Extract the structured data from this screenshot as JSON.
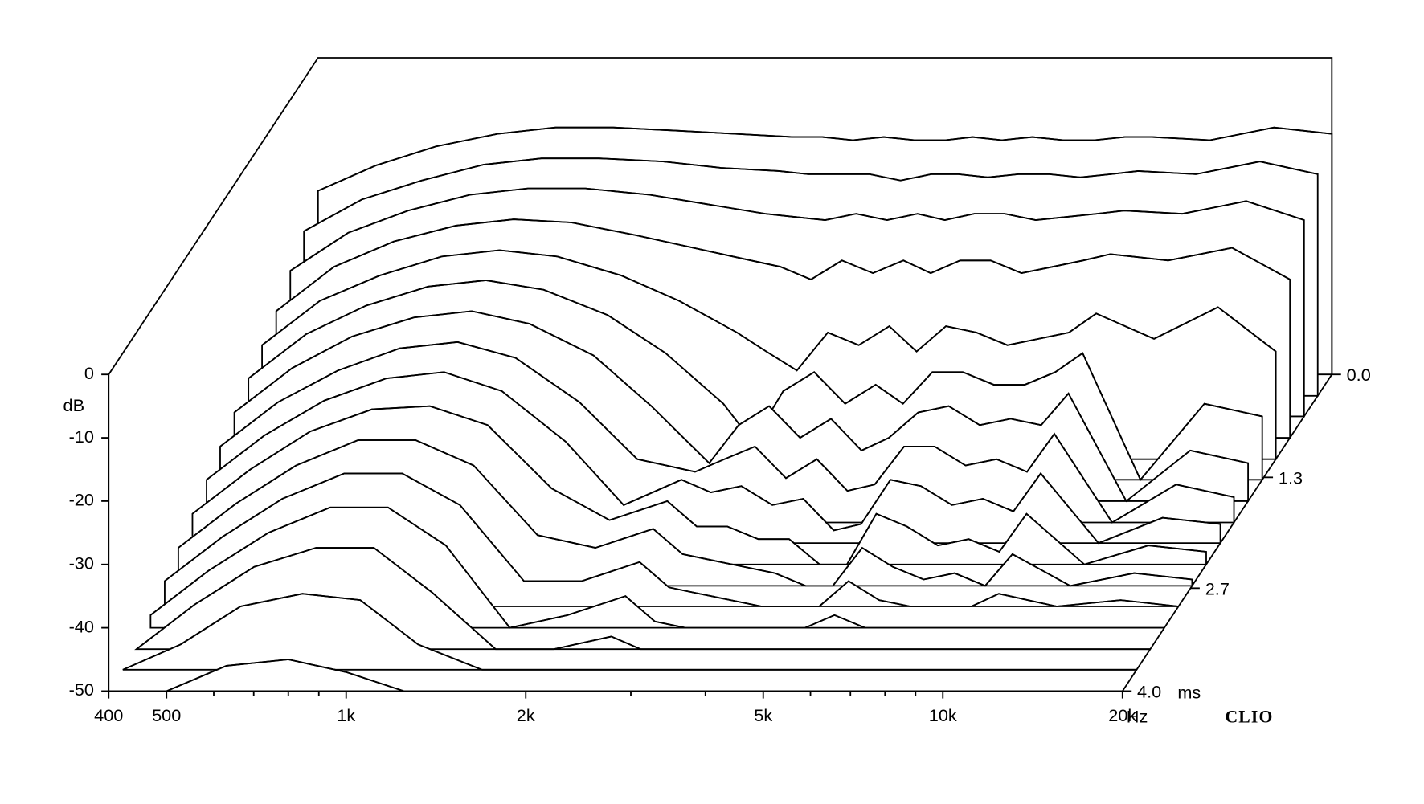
{
  "chart_data": {
    "type": "waterfall",
    "x": [
      400,
      500,
      630,
      800,
      1000,
      1250,
      1600,
      2000,
      2500,
      2800,
      3150,
      3550,
      4000,
      4500,
      5000,
      5600,
      6300,
      7100,
      8000,
      9000,
      10000,
      12500,
      16000,
      20000
    ],
    "z": [
      0,
      0.27,
      0.53,
      0.8,
      1.07,
      1.33,
      1.6,
      1.87,
      2.13,
      2.4,
      2.67,
      2.93,
      3.2,
      3.47,
      3.73,
      4.0
    ],
    "series": [
      {
        "values": [
          -21,
          -17,
          -14,
          -12,
          -11,
          -11,
          -11.5,
          -12,
          -12.5,
          -12.5,
          -13,
          -12.5,
          -13,
          -13,
          -12.5,
          -13,
          -12.5,
          -13,
          -13,
          -12.5,
          -12.5,
          -13,
          -11,
          -12
        ]
      },
      {
        "values": [
          -24,
          -19,
          -16,
          -13.5,
          -12.5,
          -12.5,
          -13,
          -14,
          -14.5,
          -15,
          -15,
          -15,
          -16,
          -15,
          -15,
          -15.5,
          -15,
          -15,
          -15.5,
          -15,
          -14.5,
          -15,
          -13,
          -15
        ]
      },
      {
        "values": [
          -27,
          -21,
          -17.5,
          -15,
          -14,
          -14,
          -15,
          -16.5,
          -18,
          -18.5,
          -19,
          -18,
          -19,
          -18,
          -19,
          -18,
          -18,
          -19,
          -18.5,
          -18,
          -17.5,
          -18,
          -16,
          -19
        ]
      },
      {
        "values": [
          -30,
          -23,
          -19,
          -16.5,
          -15.5,
          -16,
          -18,
          -20,
          -22,
          -23,
          -25,
          -22,
          -24,
          -22,
          -24,
          -22,
          -22,
          -24,
          -23,
          -22,
          -21,
          -22,
          -20,
          -25
        ]
      },
      {
        "values": [
          -32,
          -25,
          -21,
          -18,
          -17,
          -18,
          -21,
          -25,
          -30,
          -33,
          -36,
          -30,
          -32,
          -29,
          -33,
          -29,
          -30,
          -32,
          -31,
          -30,
          -27,
          -31,
          -26,
          -33
        ]
      },
      {
        "values": [
          -34,
          -27,
          -22.5,
          -19.5,
          -18.5,
          -20,
          -24,
          -30,
          -38,
          -44,
          -36,
          -33,
          -38,
          -35,
          -38,
          -33,
          -33,
          -35,
          -35,
          -33,
          -30,
          -50,
          -38,
          -40
        ]
      },
      {
        "values": [
          -36,
          -29,
          -24,
          -21,
          -20,
          -22,
          -27,
          -35,
          -44,
          -38,
          -35,
          -40,
          -37,
          -42,
          -40,
          -36,
          -35,
          -38,
          -37,
          -38,
          -33,
          -50,
          -42,
          -44
        ]
      },
      {
        "values": [
          -38,
          -31,
          -26,
          -22.5,
          -21.5,
          -24,
          -31,
          -40,
          -42,
          -40,
          -38,
          -43,
          -40,
          -45,
          -44,
          -38,
          -38,
          -41,
          -40,
          -42,
          -36,
          -50,
          -44,
          -46
        ]
      },
      {
        "values": [
          -40,
          -33,
          -27.5,
          -24,
          -23,
          -26,
          -34,
          -44,
          -40,
          -42,
          -41,
          -44,
          -43,
          -48,
          -47,
          -40,
          -41,
          -44,
          -43,
          -45,
          -39,
          -50,
          -46,
          -47
        ]
      },
      {
        "values": [
          -42,
          -35,
          -29,
          -25.5,
          -25,
          -28,
          -38,
          -43,
          -40,
          -44,
          -44,
          -46,
          -46,
          -50,
          -50,
          -42,
          -44,
          -47,
          -46,
          -48,
          -42,
          -50,
          -47,
          -48
        ]
      },
      {
        "values": [
          -44,
          -37,
          -31,
          -27,
          -27,
          -31,
          -42,
          -44,
          -41,
          -45,
          -46,
          -47,
          -48,
          -50,
          -50,
          -44,
          -47,
          -49,
          -48,
          -50,
          -45,
          -50,
          -48,
          -49
        ]
      },
      {
        "values": [
          -46,
          -39,
          -33,
          -29,
          -29,
          -34,
          -46,
          -46,
          -43,
          -47,
          -48,
          -49,
          -50,
          -50,
          -50,
          -46,
          -49,
          -50,
          -50,
          -50,
          -48,
          -50,
          -49,
          -50
        ]
      },
      {
        "values": [
          -48,
          -41,
          -35,
          -31,
          -31,
          -37,
          -50,
          -48,
          -45,
          -49,
          -50,
          -50,
          -50,
          -50,
          -50,
          -48,
          -50,
          -50,
          -50,
          -50,
          -50,
          -50,
          -50,
          -50
        ]
      },
      {
        "values": [
          -50,
          -43,
          -37,
          -34,
          -34,
          -41,
          -50,
          -50,
          -48,
          -50,
          -50,
          -50,
          -50,
          -50,
          -50,
          -50,
          -50,
          -50,
          -50,
          -50,
          -50,
          -50,
          -50,
          -50
        ]
      },
      {
        "values": [
          -50,
          -46,
          -40,
          -38,
          -39,
          -46,
          -50,
          -50,
          -50,
          -50,
          -50,
          -50,
          -50,
          -50,
          -50,
          -50,
          -50,
          -50,
          -50,
          -50,
          -50,
          -50,
          -50,
          -50
        ]
      },
      {
        "values": [
          -50,
          -50,
          -46,
          -45,
          -47,
          -50,
          -50,
          -50,
          -50,
          -50,
          -50,
          -50,
          -50,
          -50,
          -50,
          -50,
          -50,
          -50,
          -50,
          -50,
          -50,
          -50,
          -50,
          -50
        ]
      }
    ],
    "xlim": [
      400,
      20000
    ],
    "xscale": "log",
    "xticks": [
      400,
      500,
      {
        "value": 1000,
        "label": "1k"
      },
      {
        "value": 2000,
        "label": "2k"
      },
      {
        "value": 5000,
        "label": "5k"
      },
      {
        "value": 10000,
        "label": "10k"
      },
      {
        "value": 20000,
        "label": "20k"
      }
    ],
    "xminorticks": [
      600,
      700,
      800,
      900,
      3000,
      4000,
      6000,
      7000,
      8000,
      9000
    ],
    "x_unit": "Hz",
    "ylim": [
      -50,
      0
    ],
    "yticks": [
      0,
      -10,
      -20,
      -30,
      -40,
      -50
    ],
    "y_label": "dB",
    "zlim": [
      0,
      4
    ],
    "zticks": [
      {
        "value": 0,
        "label": "0.0"
      },
      1.3,
      2.7,
      {
        "value": 4,
        "label": "4.0"
      }
    ],
    "z_unit": "ms",
    "brand": "CLIO",
    "color": "#000000"
  }
}
